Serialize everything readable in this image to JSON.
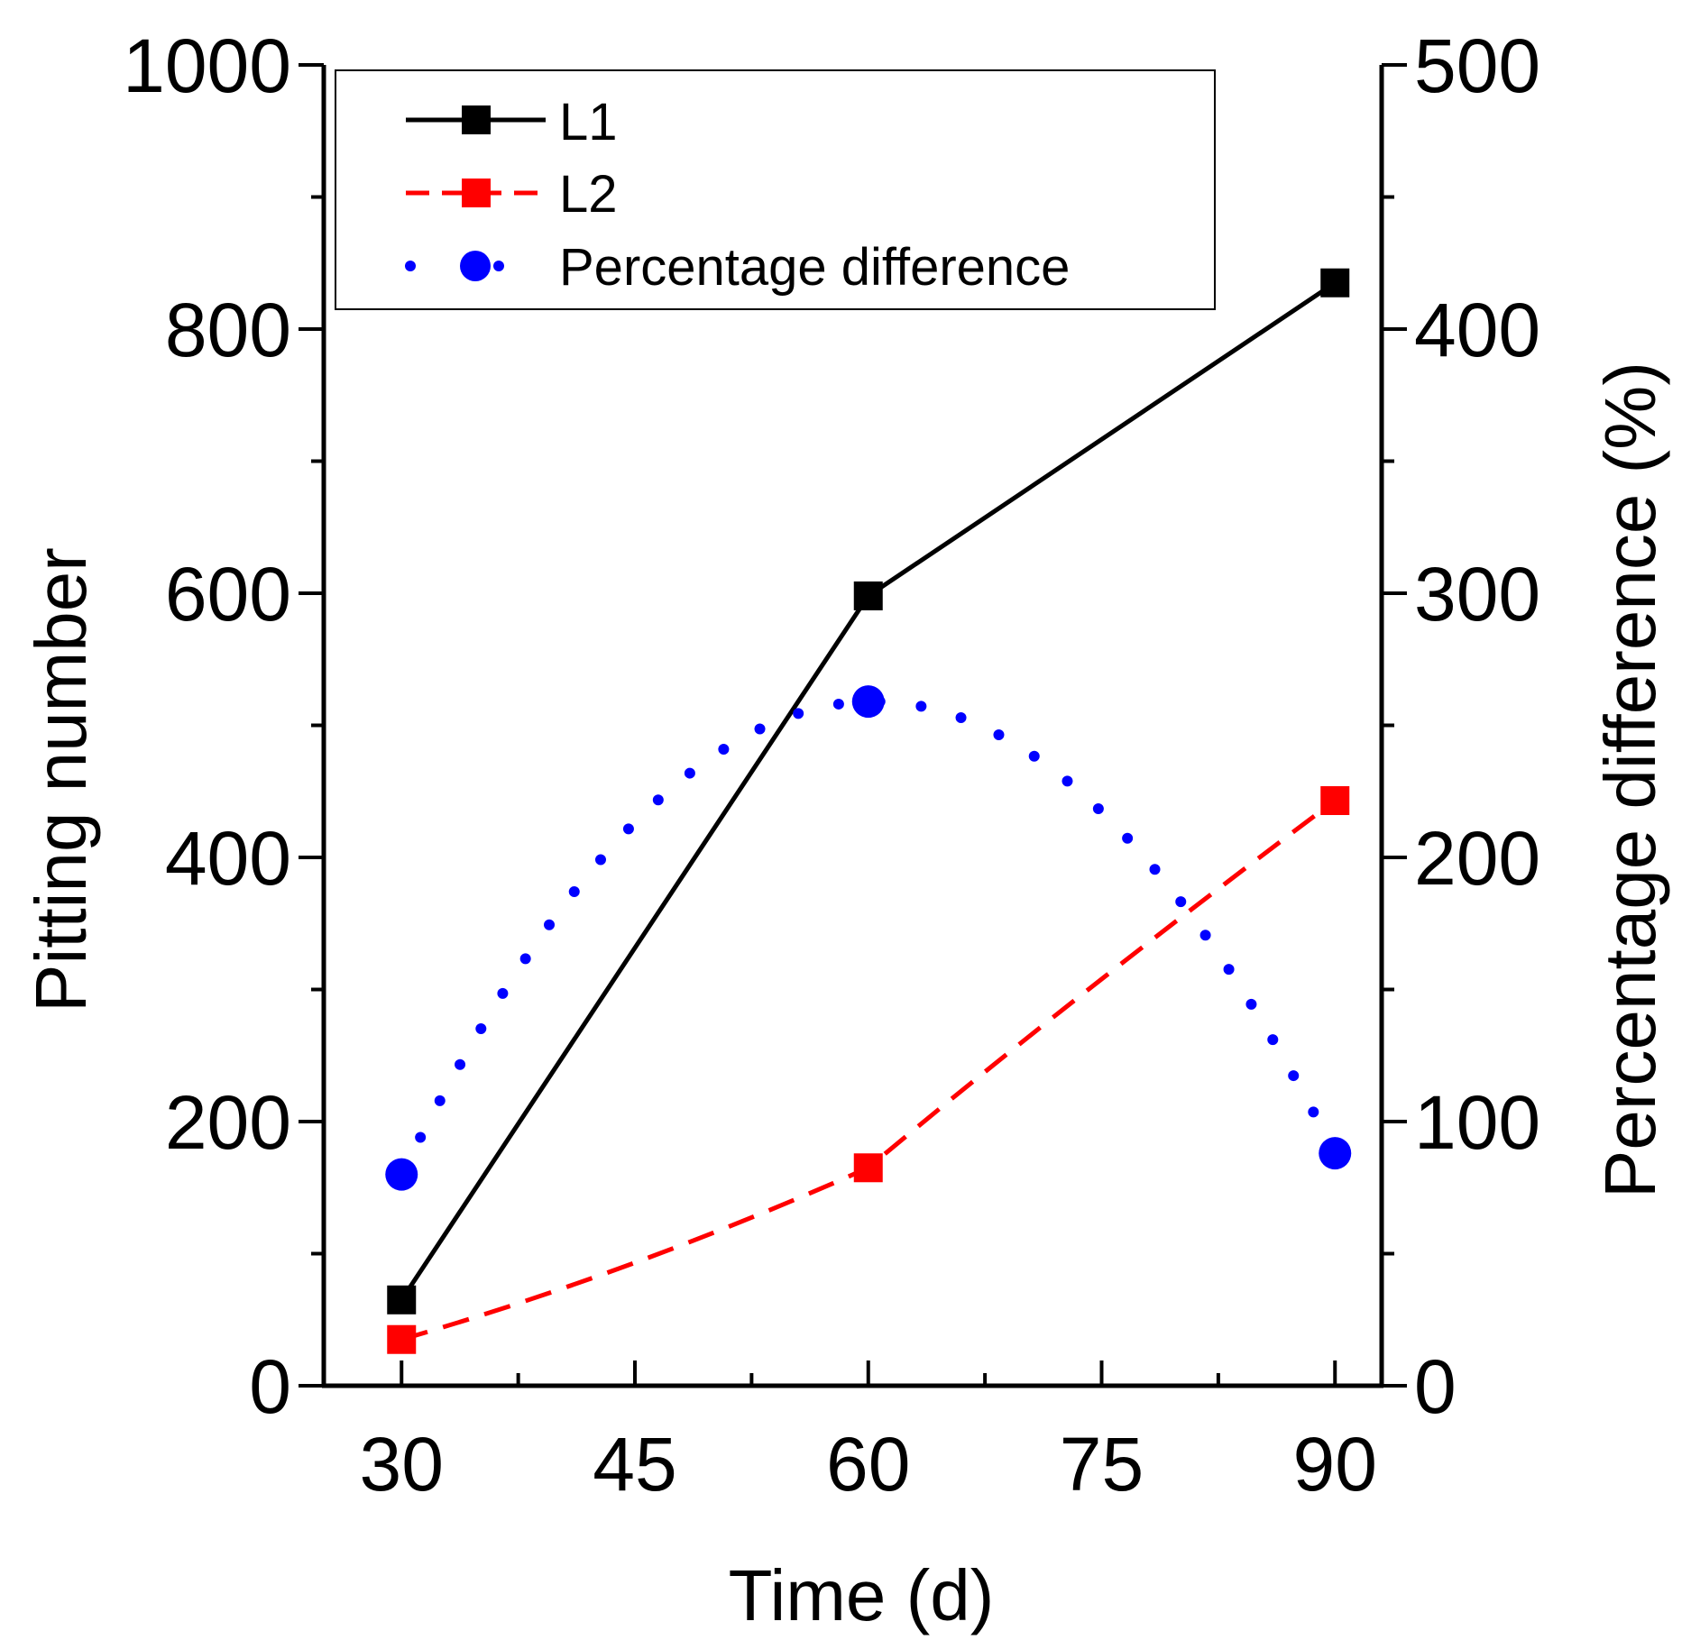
{
  "chart_data": {
    "type": "line",
    "title": "",
    "xlabel": "Time (d)",
    "ylabel": "Pitting number",
    "y2label": "Percentage difference (%)",
    "x": [
      30,
      60,
      90
    ],
    "xlim": [
      25,
      93
    ],
    "ylim": [
      0,
      1000
    ],
    "y2lim": [
      0,
      500
    ],
    "xticks": [
      30,
      45,
      60,
      75,
      90
    ],
    "yticks": [
      0,
      200,
      400,
      600,
      800,
      1000
    ],
    "y2ticks": [
      0,
      100,
      200,
      300,
      400,
      500
    ],
    "xtick_labels": [
      "30",
      "45",
      "60",
      "75",
      "90"
    ],
    "ytick_labels": [
      "0",
      "200",
      "400",
      "600",
      "800",
      "1000"
    ],
    "y2tick_labels": [
      "0",
      "100",
      "200",
      "300",
      "400",
      "500"
    ],
    "grid": false,
    "legend_position": "top-left",
    "series": [
      {
        "name": "L1",
        "axis": "left",
        "values": [
          65,
          598,
          835
        ],
        "color": "#000000",
        "line": "solid",
        "marker": "square"
      },
      {
        "name": "L2",
        "axis": "left",
        "values": [
          35,
          165,
          443
        ],
        "color": "#ff0000",
        "line": "dashed",
        "marker": "square"
      },
      {
        "name": "Percentage difference",
        "axis": "right",
        "values": [
          80,
          259,
          88
        ],
        "color": "#0000ff",
        "line": "dotted",
        "marker": "circle"
      }
    ]
  }
}
